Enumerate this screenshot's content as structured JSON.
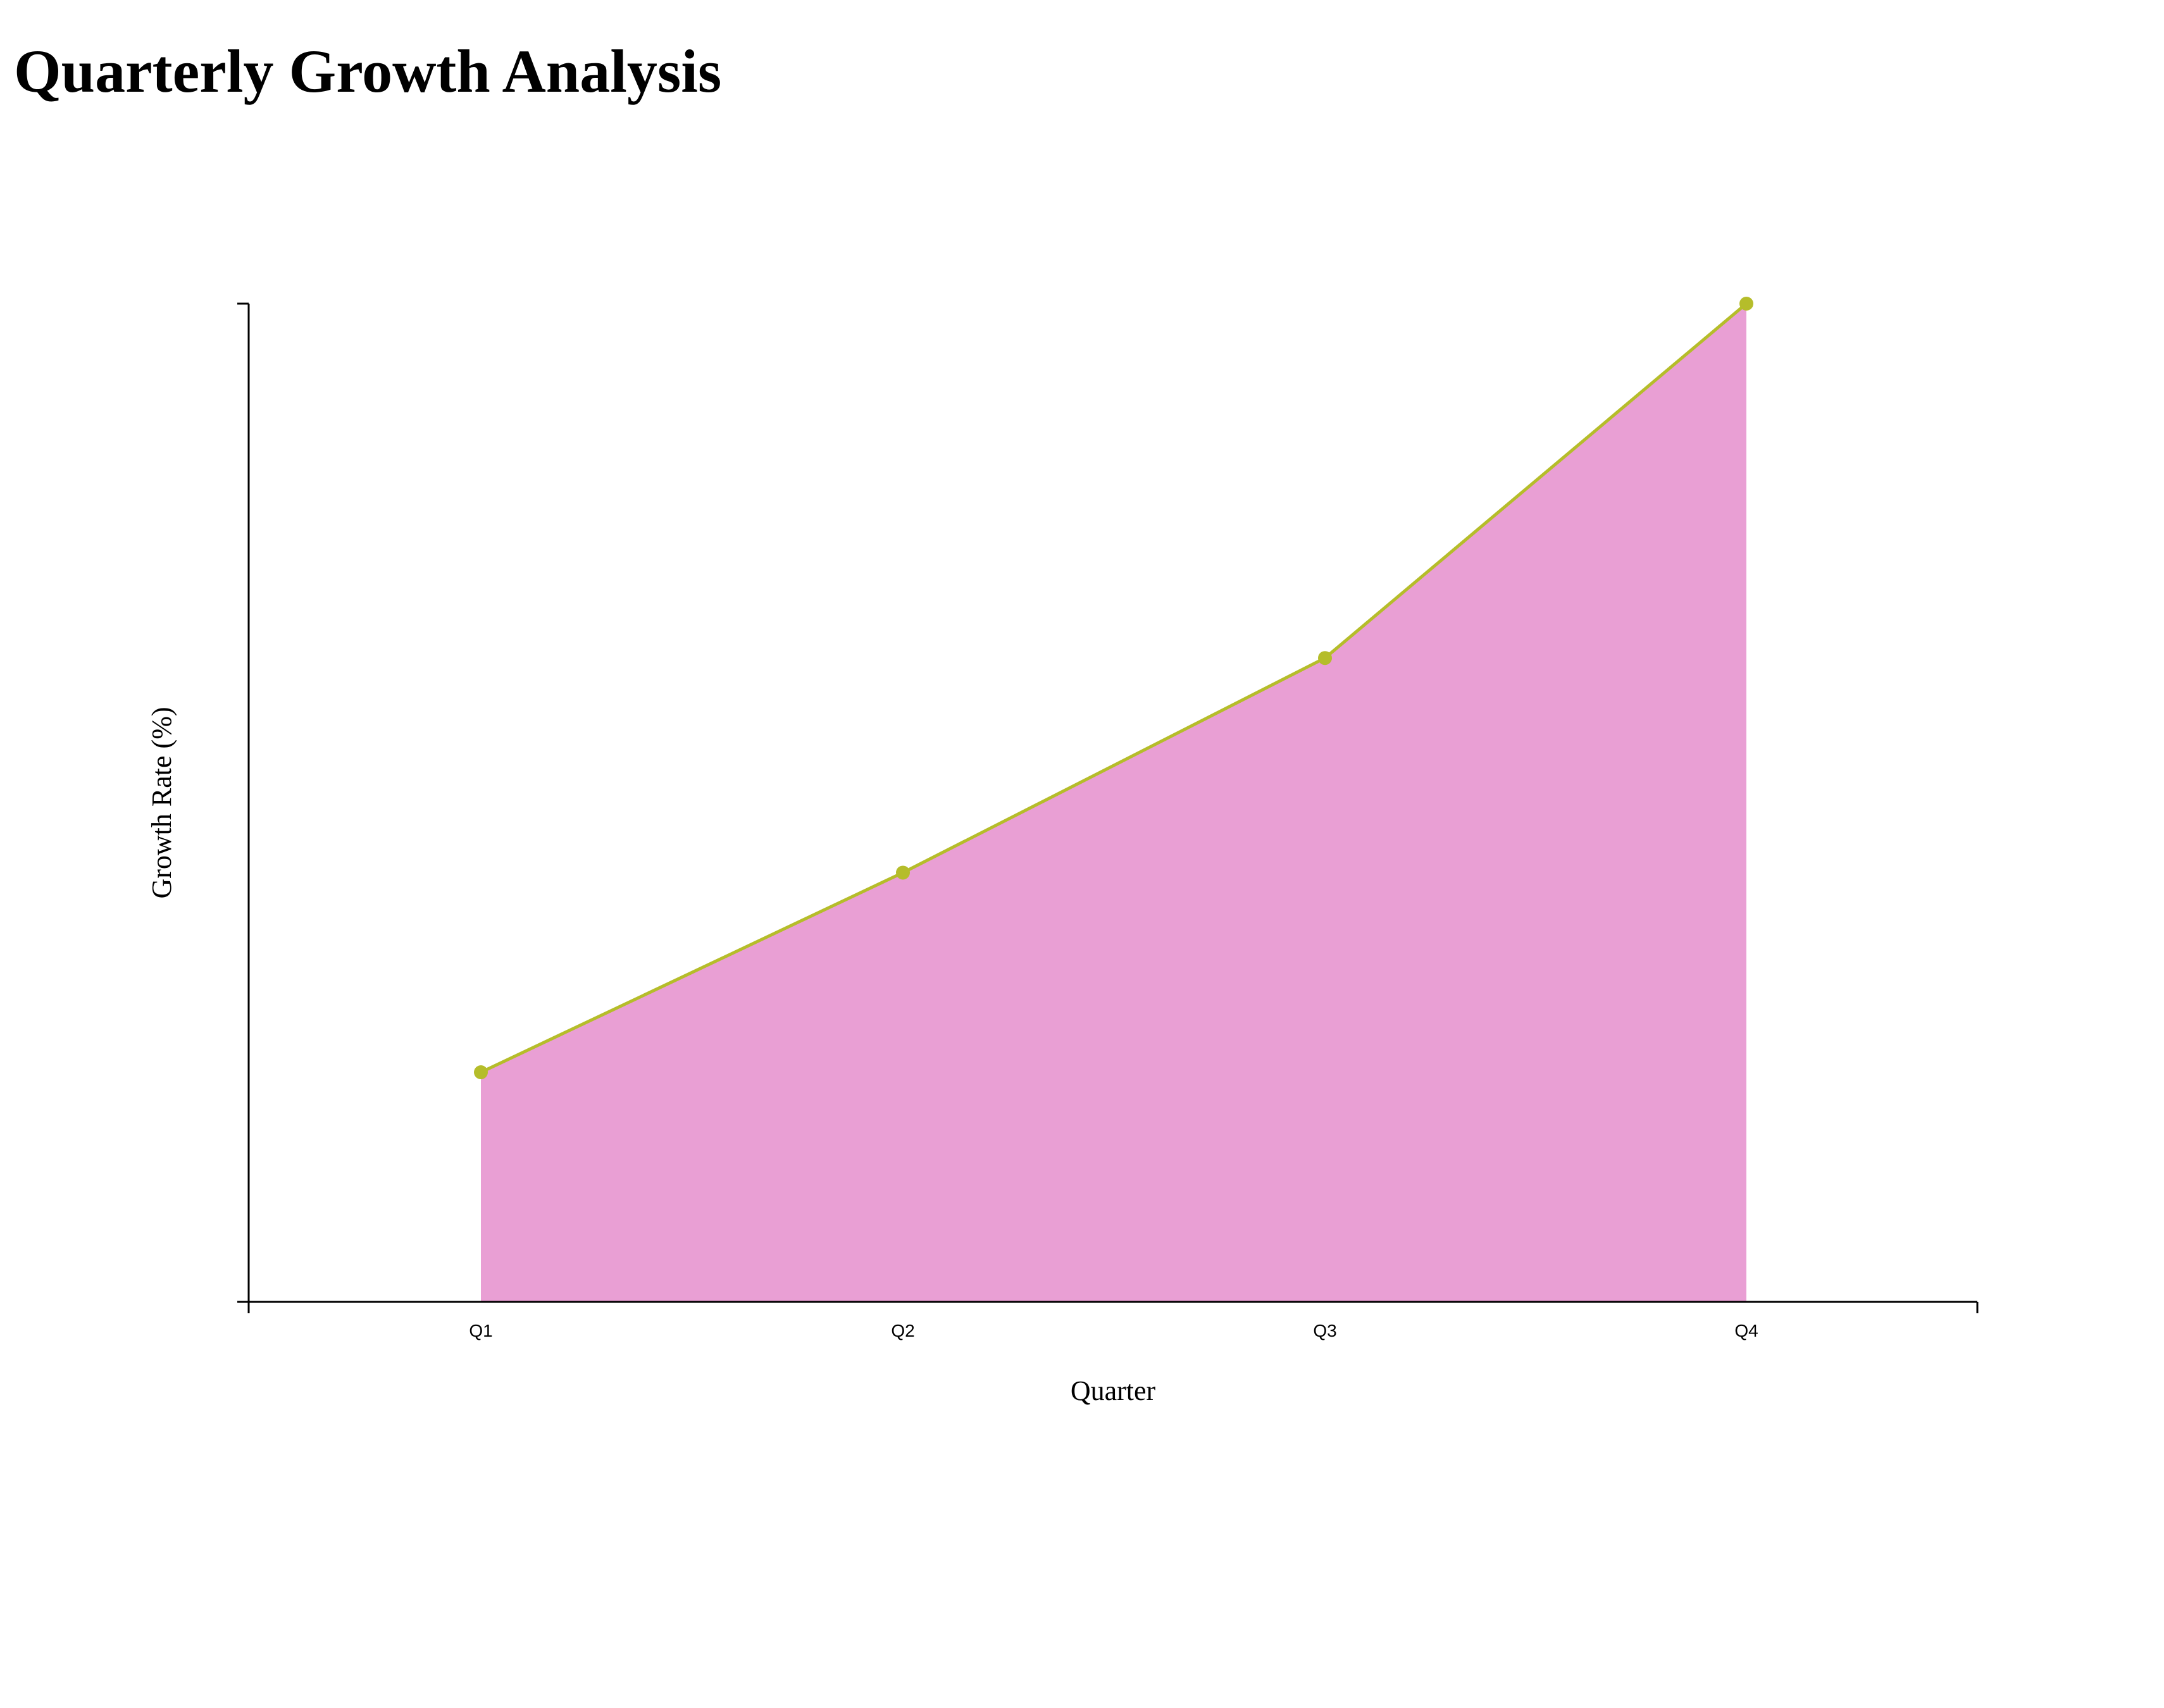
{
  "title": "Quarterly Growth Analysis",
  "colors": {
    "area_fill": "#e99fd4",
    "line": "#b5bd2a",
    "axis": "#000000"
  },
  "chart_data": {
    "type": "area",
    "categories": [
      "Q1",
      "Q2",
      "Q3",
      "Q4"
    ],
    "values": [
      2.3,
      4.3,
      6.45,
      10.0
    ],
    "xlabel": "Quarter",
    "ylabel": "Growth Rate (%)",
    "ylim": [
      0,
      10
    ],
    "y_tick_labels_shown": false,
    "grid": false,
    "legend": "none"
  }
}
